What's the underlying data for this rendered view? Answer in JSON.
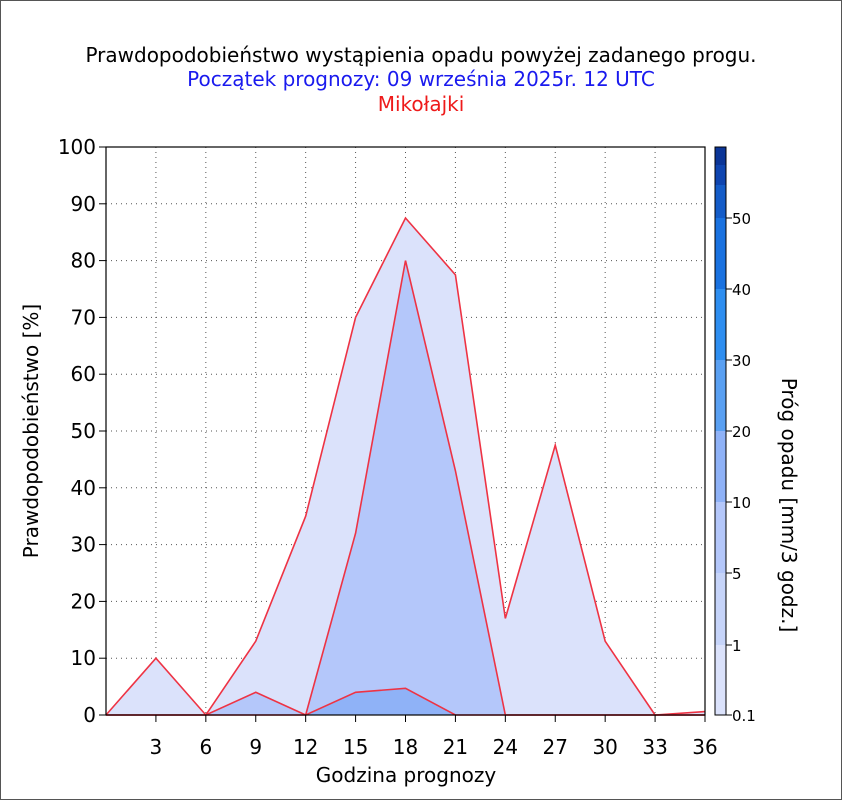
{
  "title": "Prawdopodobieństwo wystąpienia opadu powyżej zadanego progu.",
  "subtitle": "Początek prognozy: 09 września 2025r. 12 UTC",
  "location": "Mikołajki",
  "colors": {
    "title": "#000000",
    "subtitle": "#1a1aee",
    "location": "#ee1a1a",
    "outline": "#ee3344"
  },
  "chart_data": {
    "type": "area",
    "title": "Prawdopodobieństwo wystąpienia opadu powyżej zadanego progu.",
    "subtitle": "Początek prognozy: 09 września 2025r. 12 UTC",
    "xlabel": "Godzina prognozy",
    "ylabel": "Prawdopodobieństwo [%]",
    "colorbar_label": "Próg opadu [mm/3 godz.]",
    "x": [
      0,
      3,
      6,
      9,
      12,
      15,
      18,
      21,
      24,
      27,
      30,
      33,
      36
    ],
    "xticks": [
      3,
      6,
      9,
      12,
      15,
      18,
      21,
      24,
      27,
      30,
      33,
      36
    ],
    "xlim": [
      0,
      36
    ],
    "ylim": [
      0,
      100
    ],
    "yticks": [
      0,
      10,
      20,
      30,
      40,
      50,
      60,
      70,
      80,
      90,
      100
    ],
    "grid": true,
    "series": [
      {
        "name": "0.1",
        "color": "#dbe2fb",
        "values": [
          0,
          10,
          0,
          13,
          35,
          70,
          87.5,
          77.5,
          17,
          47.5,
          13,
          0,
          0.6
        ]
      },
      {
        "name": "1",
        "color": "#b4c7fa",
        "values": [
          0,
          0,
          0,
          4,
          0,
          32,
          80,
          43,
          0,
          0,
          0,
          0,
          0
        ]
      },
      {
        "name": "5",
        "color": "#8fb2f7",
        "values": [
          0,
          0,
          0,
          0,
          0,
          4,
          4.7,
          0,
          0,
          0,
          0,
          0,
          0
        ]
      }
    ],
    "colorbar": {
      "labels": [
        "0.1",
        "1",
        "5",
        "10",
        "20",
        "30",
        "40",
        "50"
      ],
      "colors": [
        "#dbe2fb",
        "#c6d4f9",
        "#b4c7fa",
        "#8fb2f7",
        "#5aa0f2",
        "#2e8ef0",
        "#1a72e0",
        "#145cc8",
        "#0f45b0",
        "#0b3597"
      ]
    }
  }
}
